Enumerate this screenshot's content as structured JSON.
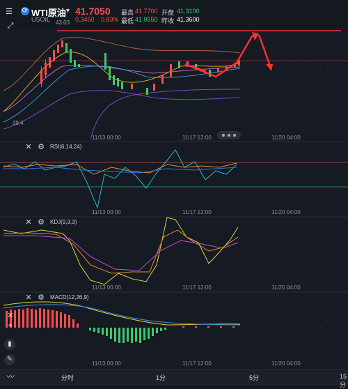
{
  "header": {
    "symbol": "WTI原油",
    "code": "USOIL",
    "price": "41.7050",
    "change": "0.3450",
    "change_pct": "0.83%",
    "high_label": "最高",
    "high": "41.7700",
    "open_label": "开盘",
    "open": "41.3100",
    "low_label": "最低",
    "low": "41.0550",
    "prev_label": "昨收",
    "prev": "41.3600"
  },
  "main": {
    "marker_high": "43.03",
    "marker_low": "39.4",
    "times": [
      "11/13 00:00",
      "11/17 12:00",
      "11/20 04:00"
    ]
  },
  "rsi": {
    "label": "RSI(6,14,24)",
    "times": [
      "11/13 00:00",
      "11/17 12:00",
      "11/20 04:00"
    ]
  },
  "kdj": {
    "label": "KDJ(9,3,3)",
    "times": [
      "11/13 00:00",
      "11/17 12:00",
      "11/20 04:00"
    ]
  },
  "macd": {
    "label": "MACD(12,26,9)",
    "times": [
      "11/13 00:00",
      "11/17 12:00",
      "11/20 04:00"
    ]
  },
  "bottom_tabs": [
    "分时",
    "1分",
    "5分",
    "15分"
  ],
  "colors": {
    "up": "#ff4d4d",
    "down": "#3ec96a",
    "bg": "#14181f"
  },
  "icons": [
    "back-icon",
    "crosshair-icon",
    "close-icon",
    "settings-icon",
    "chart-type-icon",
    "draw-icon"
  ]
}
